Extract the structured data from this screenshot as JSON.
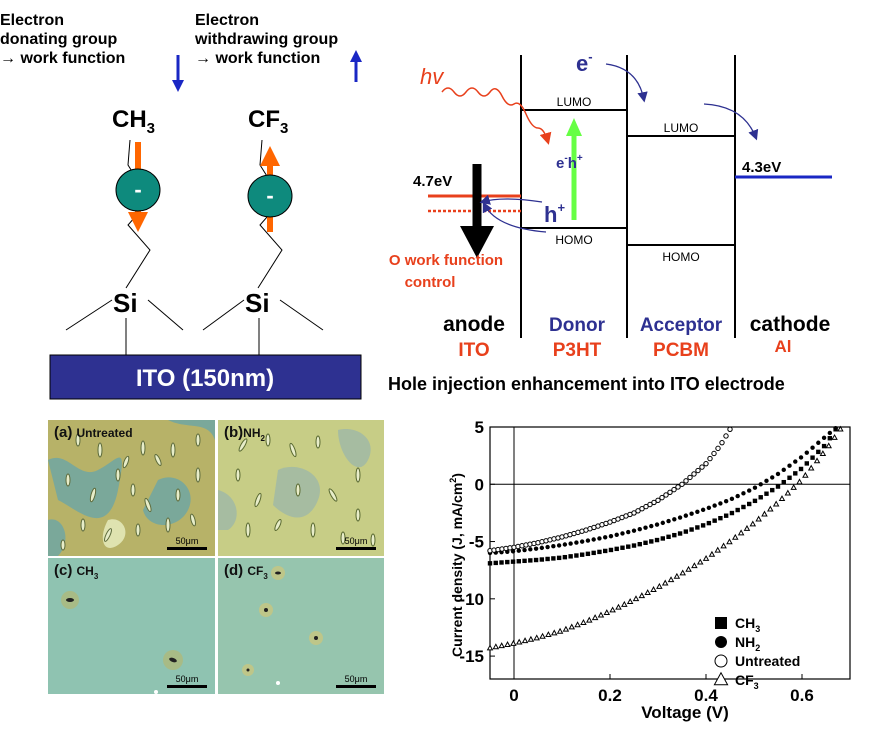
{
  "left_schematic": {
    "donating_text": [
      "Electron",
      "donating group",
      "→ work function"
    ],
    "withdrawing_text": [
      "Electron",
      "withdrawing group",
      "→ work function"
    ],
    "ch3": "CH",
    "ch3_sub": "3",
    "cf3": "CF",
    "cf3_sub": "3",
    "si": "Si",
    "dipole_sign": "-",
    "substrate": "ITO (150nm)",
    "colors": {
      "substrate": "#2e3191",
      "ellipse": "#0e8a7d",
      "arrow_orange": "#ff6600",
      "arrow_blue": "#1a27c4"
    }
  },
  "energy_diagram": {
    "hv": "hv",
    "electron": "e",
    "electron_sup": "-",
    "lumo": "LUMO",
    "homo": "HOMO",
    "exciton": "e",
    "exciton_sup1": "-",
    "exciton_mid": "h",
    "exciton_sup2": "+",
    "hole": "h",
    "hole_sup": "+",
    "anode_energy": "4.7eV",
    "cathode_energy": "4.3eV",
    "work_function_control": [
      "O work function",
      "control"
    ],
    "layers": [
      {
        "name": "anode",
        "material": "ITO"
      },
      {
        "name": "Donor",
        "material": "P3HT"
      },
      {
        "name": "Acceptor",
        "material": "PCBM"
      },
      {
        "name": "cathode",
        "material": "Al"
      }
    ],
    "caption": "Hole injection enhancement into ITO electrode",
    "colors": {
      "red": "#e8401c",
      "blue": "#2e3191",
      "green": "#66ff44"
    }
  },
  "micrographs": [
    {
      "label": "(a)",
      "name": "Untreated",
      "scale": "50μm"
    },
    {
      "label": "(b)",
      "name": "NH",
      "name_sub": "2",
      "scale": "50μm"
    },
    {
      "label": "(c)",
      "name": "CH",
      "name_sub": "3",
      "scale": "50μm"
    },
    {
      "label": "(d)",
      "name": "CF",
      "name_sub": "3",
      "scale": "50μm"
    }
  ],
  "chart_data": {
    "type": "scatter",
    "xlabel": "Voltage (V)",
    "ylabel": "Current density (J, mA/cm",
    "ylabel_sup": "2",
    "ylabel_end": ")",
    "xlim": [
      -0.05,
      0.7
    ],
    "ylim": [
      -17,
      5
    ],
    "xticks": [
      0,
      0.2,
      0.4,
      0.6
    ],
    "xtick_labels": [
      "0",
      "0.2",
      "0.4",
      "0.6"
    ],
    "yticks": [
      5,
      0,
      -5,
      -10,
      -15
    ],
    "ytick_labels": [
      "5",
      "0",
      "-5",
      "-10",
      "-15"
    ],
    "series": [
      {
        "name": "CH",
        "name_sub": "3",
        "marker": "filled-square",
        "x": [
          -0.05,
          0.0,
          0.05,
          0.1,
          0.15,
          0.2,
          0.25,
          0.3,
          0.35,
          0.4,
          0.45,
          0.5,
          0.55,
          0.6,
          0.65,
          0.67
        ],
        "y": [
          -6.9,
          -6.75,
          -6.6,
          -6.4,
          -6.1,
          -5.75,
          -5.35,
          -4.85,
          -4.25,
          -3.5,
          -2.6,
          -1.5,
          -0.2,
          1.4,
          3.5,
          4.8
        ]
      },
      {
        "name": "NH",
        "name_sub": "2",
        "marker": "filled-circle",
        "x": [
          -0.05,
          0.0,
          0.05,
          0.1,
          0.15,
          0.2,
          0.25,
          0.3,
          0.35,
          0.4,
          0.45,
          0.5,
          0.55,
          0.6,
          0.65,
          0.67
        ],
        "y": [
          -6.0,
          -5.85,
          -5.6,
          -5.3,
          -4.95,
          -4.55,
          -4.05,
          -3.5,
          -2.85,
          -2.15,
          -1.35,
          -0.35,
          0.9,
          2.4,
          4.2,
          4.9
        ]
      },
      {
        "name": "Untreated",
        "marker": "open-circle",
        "x": [
          -0.05,
          0.0,
          0.05,
          0.1,
          0.15,
          0.2,
          0.25,
          0.3,
          0.35,
          0.4,
          0.43,
          0.45
        ],
        "y": [
          -5.8,
          -5.5,
          -5.1,
          -4.6,
          -4.0,
          -3.3,
          -2.5,
          -1.4,
          0.0,
          1.8,
          3.4,
          4.8
        ]
      },
      {
        "name": "CF",
        "name_sub": "3",
        "marker": "open-triangle",
        "x": [
          -0.05,
          0.0,
          0.05,
          0.1,
          0.15,
          0.2,
          0.25,
          0.3,
          0.35,
          0.4,
          0.45,
          0.5,
          0.55,
          0.6,
          0.65,
          0.68
        ],
        "y": [
          -14.3,
          -13.9,
          -13.4,
          -12.8,
          -12.0,
          -11.1,
          -10.1,
          -9.0,
          -7.8,
          -6.5,
          -5.0,
          -3.4,
          -1.6,
          0.4,
          3.0,
          4.8
        ]
      }
    ]
  }
}
